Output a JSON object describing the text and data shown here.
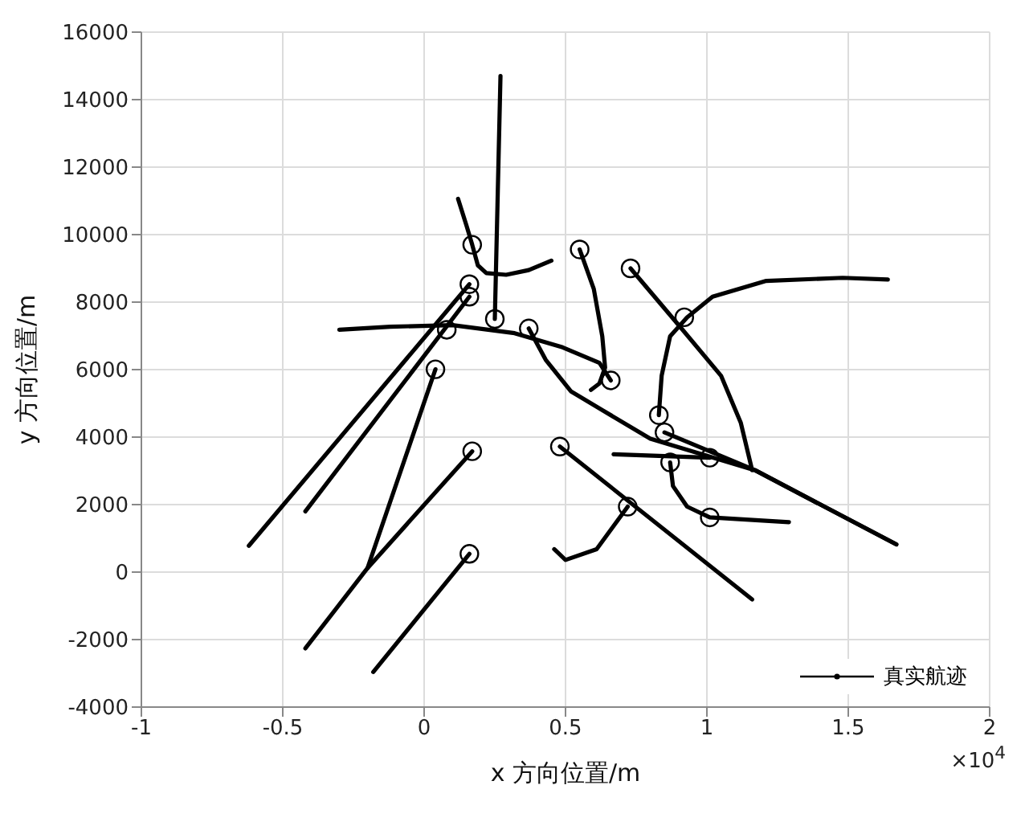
{
  "chart_data": {
    "type": "line",
    "xlabel": "x 方向位置/m",
    "ylabel": "y 方向位置/m",
    "annotations": [
      "×10$^{4}$"
    ],
    "xlim": [
      -1,
      2
    ],
    "xticks": [
      -1,
      -0.5,
      0,
      0.5,
      1,
      1.5,
      2
    ],
    "ylim": [
      -4000,
      16000
    ],
    "yticks": [
      -4000,
      -2000,
      0,
      2000,
      4000,
      6000,
      8000,
      10000,
      12000,
      14000,
      16000
    ],
    "grid": true,
    "legend": "bottom right",
    "marker": "none",
    "line_style": "solid",
    "series": [
      {
        "name": "真实航迹",
        "color": "#000000",
        "x": [
          0.16,
          -0.18
        ],
        "values": [
          540,
          -2960
        ]
      },
      {
        "color": "#000000",
        "x": [
          0.17,
          -0.2,
          -0.42
        ],
        "values": [
          3580,
          120,
          -2260
        ]
      },
      {
        "color": "#000000",
        "x": [
          0.04,
          -0.2
        ],
        "values": [
          6010,
          120
        ]
      },
      {
        "color": "#000000",
        "x": [
          0.16,
          -0.62
        ],
        "values": [
          8530,
          780
        ]
      },
      {
        "color": "#000000",
        "x": [
          0.16,
          -0.42
        ],
        "values": [
          8160,
          1800
        ]
      },
      {
        "color": "#000000",
        "x": [
          0.12,
          0.15,
          0.17,
          0.19,
          0.22,
          0.29,
          0.37,
          0.45
        ],
        "values": [
          11060,
          10260,
          9700,
          9090,
          8860,
          8810,
          8950,
          9230
        ]
      },
      {
        "color": "#000000",
        "x": [
          0.25,
          0.27
        ],
        "values": [
          7500,
          14700
        ]
      },
      {
        "color": "#000000",
        "x": [
          -0.3,
          -0.12,
          0.1,
          0.32,
          0.49,
          0.62,
          0.66
        ],
        "values": [
          7180,
          7270,
          7320,
          7080,
          6660,
          6200,
          5680
        ]
      },
      {
        "color": "#000000",
        "x": [
          0.55,
          0.6,
          0.63,
          0.64,
          0.62,
          0.59
        ],
        "values": [
          9560,
          8390,
          6990,
          6060,
          5590,
          5400
        ]
      },
      {
        "color": "#000000",
        "x": [
          0.37,
          0.43,
          0.52,
          0.8,
          1.17,
          1.67
        ],
        "values": [
          7220,
          6290,
          5350,
          3950,
          3020,
          820
        ]
      },
      {
        "color": "#000000",
        "x": [
          0.73,
          0.91,
          1.05,
          1.12,
          1.16
        ],
        "values": [
          9000,
          7220,
          5820,
          4420,
          3020
        ]
      },
      {
        "color": "#000000",
        "x": [
          0.83,
          0.84,
          0.87,
          0.93,
          1.02,
          1.21,
          1.48,
          1.64
        ],
        "values": [
          4650,
          5820,
          6990,
          7550,
          8160,
          8630,
          8720,
          8670
        ]
      },
      {
        "color": "#000000",
        "x": [
          0.85,
          1.17,
          1.67
        ],
        "values": [
          4140,
          3020,
          820
        ]
      },
      {
        "color": "#000000",
        "x": [
          1.01,
          0.67
        ],
        "values": [
          3390,
          3490
        ]
      },
      {
        "color": "#000000",
        "x": [
          0.87,
          0.88,
          0.93,
          1.01,
          1.29
        ],
        "values": [
          3250,
          2550,
          1940,
          1620,
          1480
        ]
      },
      {
        "color": "#000000",
        "x": [
          0.48,
          1.16
        ],
        "values": [
          3720,
          -810
        ]
      },
      {
        "color": "#000000",
        "x": [
          0.72,
          0.61,
          0.5,
          0.46
        ],
        "values": [
          1940,
          680,
          360,
          680
        ]
      },
      {
        "type": "scatter",
        "marker": "circle",
        "color": "#000000",
        "x": [
          0.16,
          0.17,
          0.04,
          0.16,
          0.16,
          0.17,
          0.25,
          0.08,
          0.37,
          0.55,
          0.73,
          0.92,
          0.66,
          0.83,
          0.85,
          1.01,
          0.87,
          1.01,
          0.48,
          0.72
        ],
        "values": [
          540,
          3580,
          6010,
          8530,
          8160,
          9700,
          7500,
          7180,
          7220,
          9560,
          9000,
          7550,
          5680,
          4650,
          4140,
          3390,
          3250,
          1620,
          3720,
          1940
        ]
      }
    ]
  }
}
